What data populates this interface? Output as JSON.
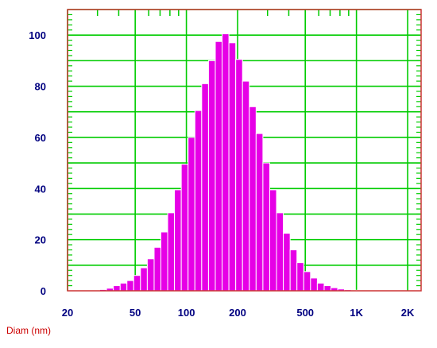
{
  "chart_data": {
    "type": "bar",
    "title": "",
    "xlabel": "Diam (nm)",
    "ylabel": "",
    "x_scale": "log",
    "xlim": [
      20,
      2400
    ],
    "ylim": [
      0,
      110
    ],
    "grid": true,
    "x_ticks": [
      {
        "value": 20,
        "label": "20"
      },
      {
        "value": 50,
        "label": "50"
      },
      {
        "value": 100,
        "label": "100"
      },
      {
        "value": 200,
        "label": "200"
      },
      {
        "value": 500,
        "label": "500"
      },
      {
        "value": 1000,
        "label": "1K"
      },
      {
        "value": 2000,
        "label": "2K"
      }
    ],
    "y_ticks": [
      0,
      20,
      40,
      60,
      80,
      100
    ],
    "bin_edges": [
      28.2,
      30.9,
      33.9,
      37.2,
      40.8,
      44.7,
      49.0,
      53.7,
      58.9,
      64.6,
      70.8,
      77.6,
      85.1,
      93.3,
      102.3,
      112.2,
      123.0,
      134.9,
      147.9,
      162.2,
      177.8,
      195.0,
      213.8,
      234.4,
      257.0,
      281.8,
      309.0,
      338.8,
      371.5,
      407.4,
      446.7,
      489.8,
      537.0,
      588.8,
      645.7,
      707.9,
      776.2,
      851.1,
      933.3,
      1023.3,
      1122.0,
      1230.3,
      1349.0
    ],
    "values": [
      0.3,
      0.5,
      1,
      2,
      3,
      4,
      6,
      9,
      12.5,
      17,
      23,
      30.5,
      39.5,
      49.5,
      60,
      70.5,
      81,
      90,
      97.5,
      100.5,
      97,
      90.5,
      82,
      72,
      61.5,
      50,
      39.5,
      30.5,
      22.5,
      16,
      11,
      7.5,
      5,
      3,
      2,
      1.2,
      0.7,
      0.4,
      0.2,
      0.1,
      0.05,
      0.02
    ],
    "colors": {
      "bar_fill": "#e600e6",
      "bar_edge": "#ffffff",
      "grid": "#00cc00",
      "frame": "#cc3333",
      "tick_text": "#000080",
      "xlabel_text": "#cc0000"
    }
  }
}
